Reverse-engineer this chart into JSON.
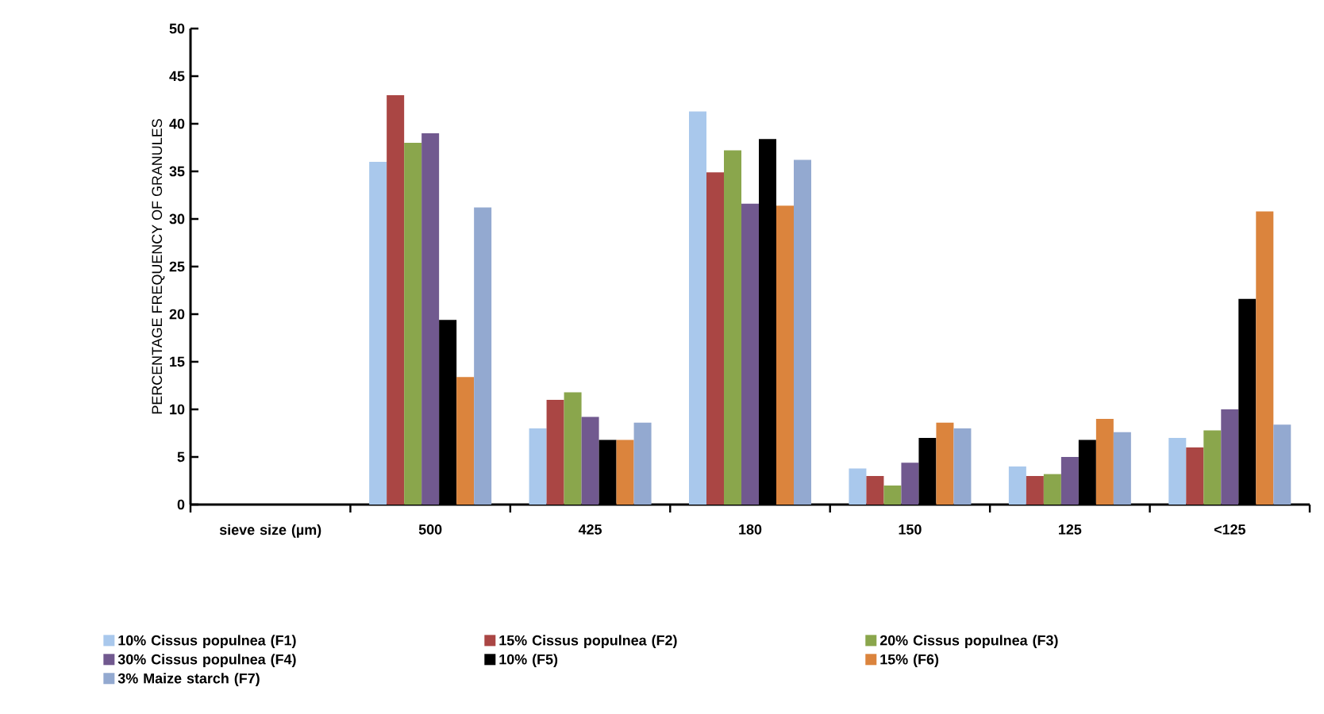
{
  "chart_data": {
    "type": "bar",
    "ylabel": "PERCENTAGE FREQUENCY OF GRANULES",
    "categories": [
      "sieve size (µm)",
      "500",
      "425",
      "180",
      "150",
      "125",
      "<125"
    ],
    "series": [
      {
        "name": "10% Cissus populnea (F1)",
        "color": "#a9c8ec",
        "values": [
          null,
          36,
          8,
          41.3,
          3.8,
          4,
          7
        ]
      },
      {
        "name": "15% Cissus populnea (F2)",
        "color": "#aa4644",
        "values": [
          null,
          43,
          11,
          34.9,
          3,
          3,
          6
        ]
      },
      {
        "name": "20% Cissus populnea (F3)",
        "color": "#8aa64c",
        "values": [
          null,
          38,
          11.8,
          37.2,
          2,
          3.2,
          7.8
        ]
      },
      {
        "name": "30% Cissus populnea (F4)",
        "color": "#71598f",
        "values": [
          null,
          39,
          9.2,
          31.6,
          4.4,
          5,
          10
        ]
      },
      {
        "name": "10% (F5)",
        "color": "#000000",
        "values": [
          null,
          19.4,
          6.8,
          38.4,
          7,
          6.8,
          21.6
        ]
      },
      {
        "name": "15% (F6)",
        "color": "#db843d",
        "values": [
          null,
          13.4,
          6.8,
          31.4,
          8.6,
          9,
          30.8
        ]
      },
      {
        "name": "3% Maize starch (F7)",
        "color": "#93a9d0",
        "values": [
          null,
          31.2,
          8.6,
          36.2,
          8,
          7.6,
          8.4
        ]
      }
    ],
    "ylim": [
      0,
      50
    ],
    "yticks": [
      0,
      5,
      10,
      15,
      20,
      25,
      30,
      35,
      40,
      45,
      50
    ],
    "grid": false,
    "legend": "bottom"
  }
}
